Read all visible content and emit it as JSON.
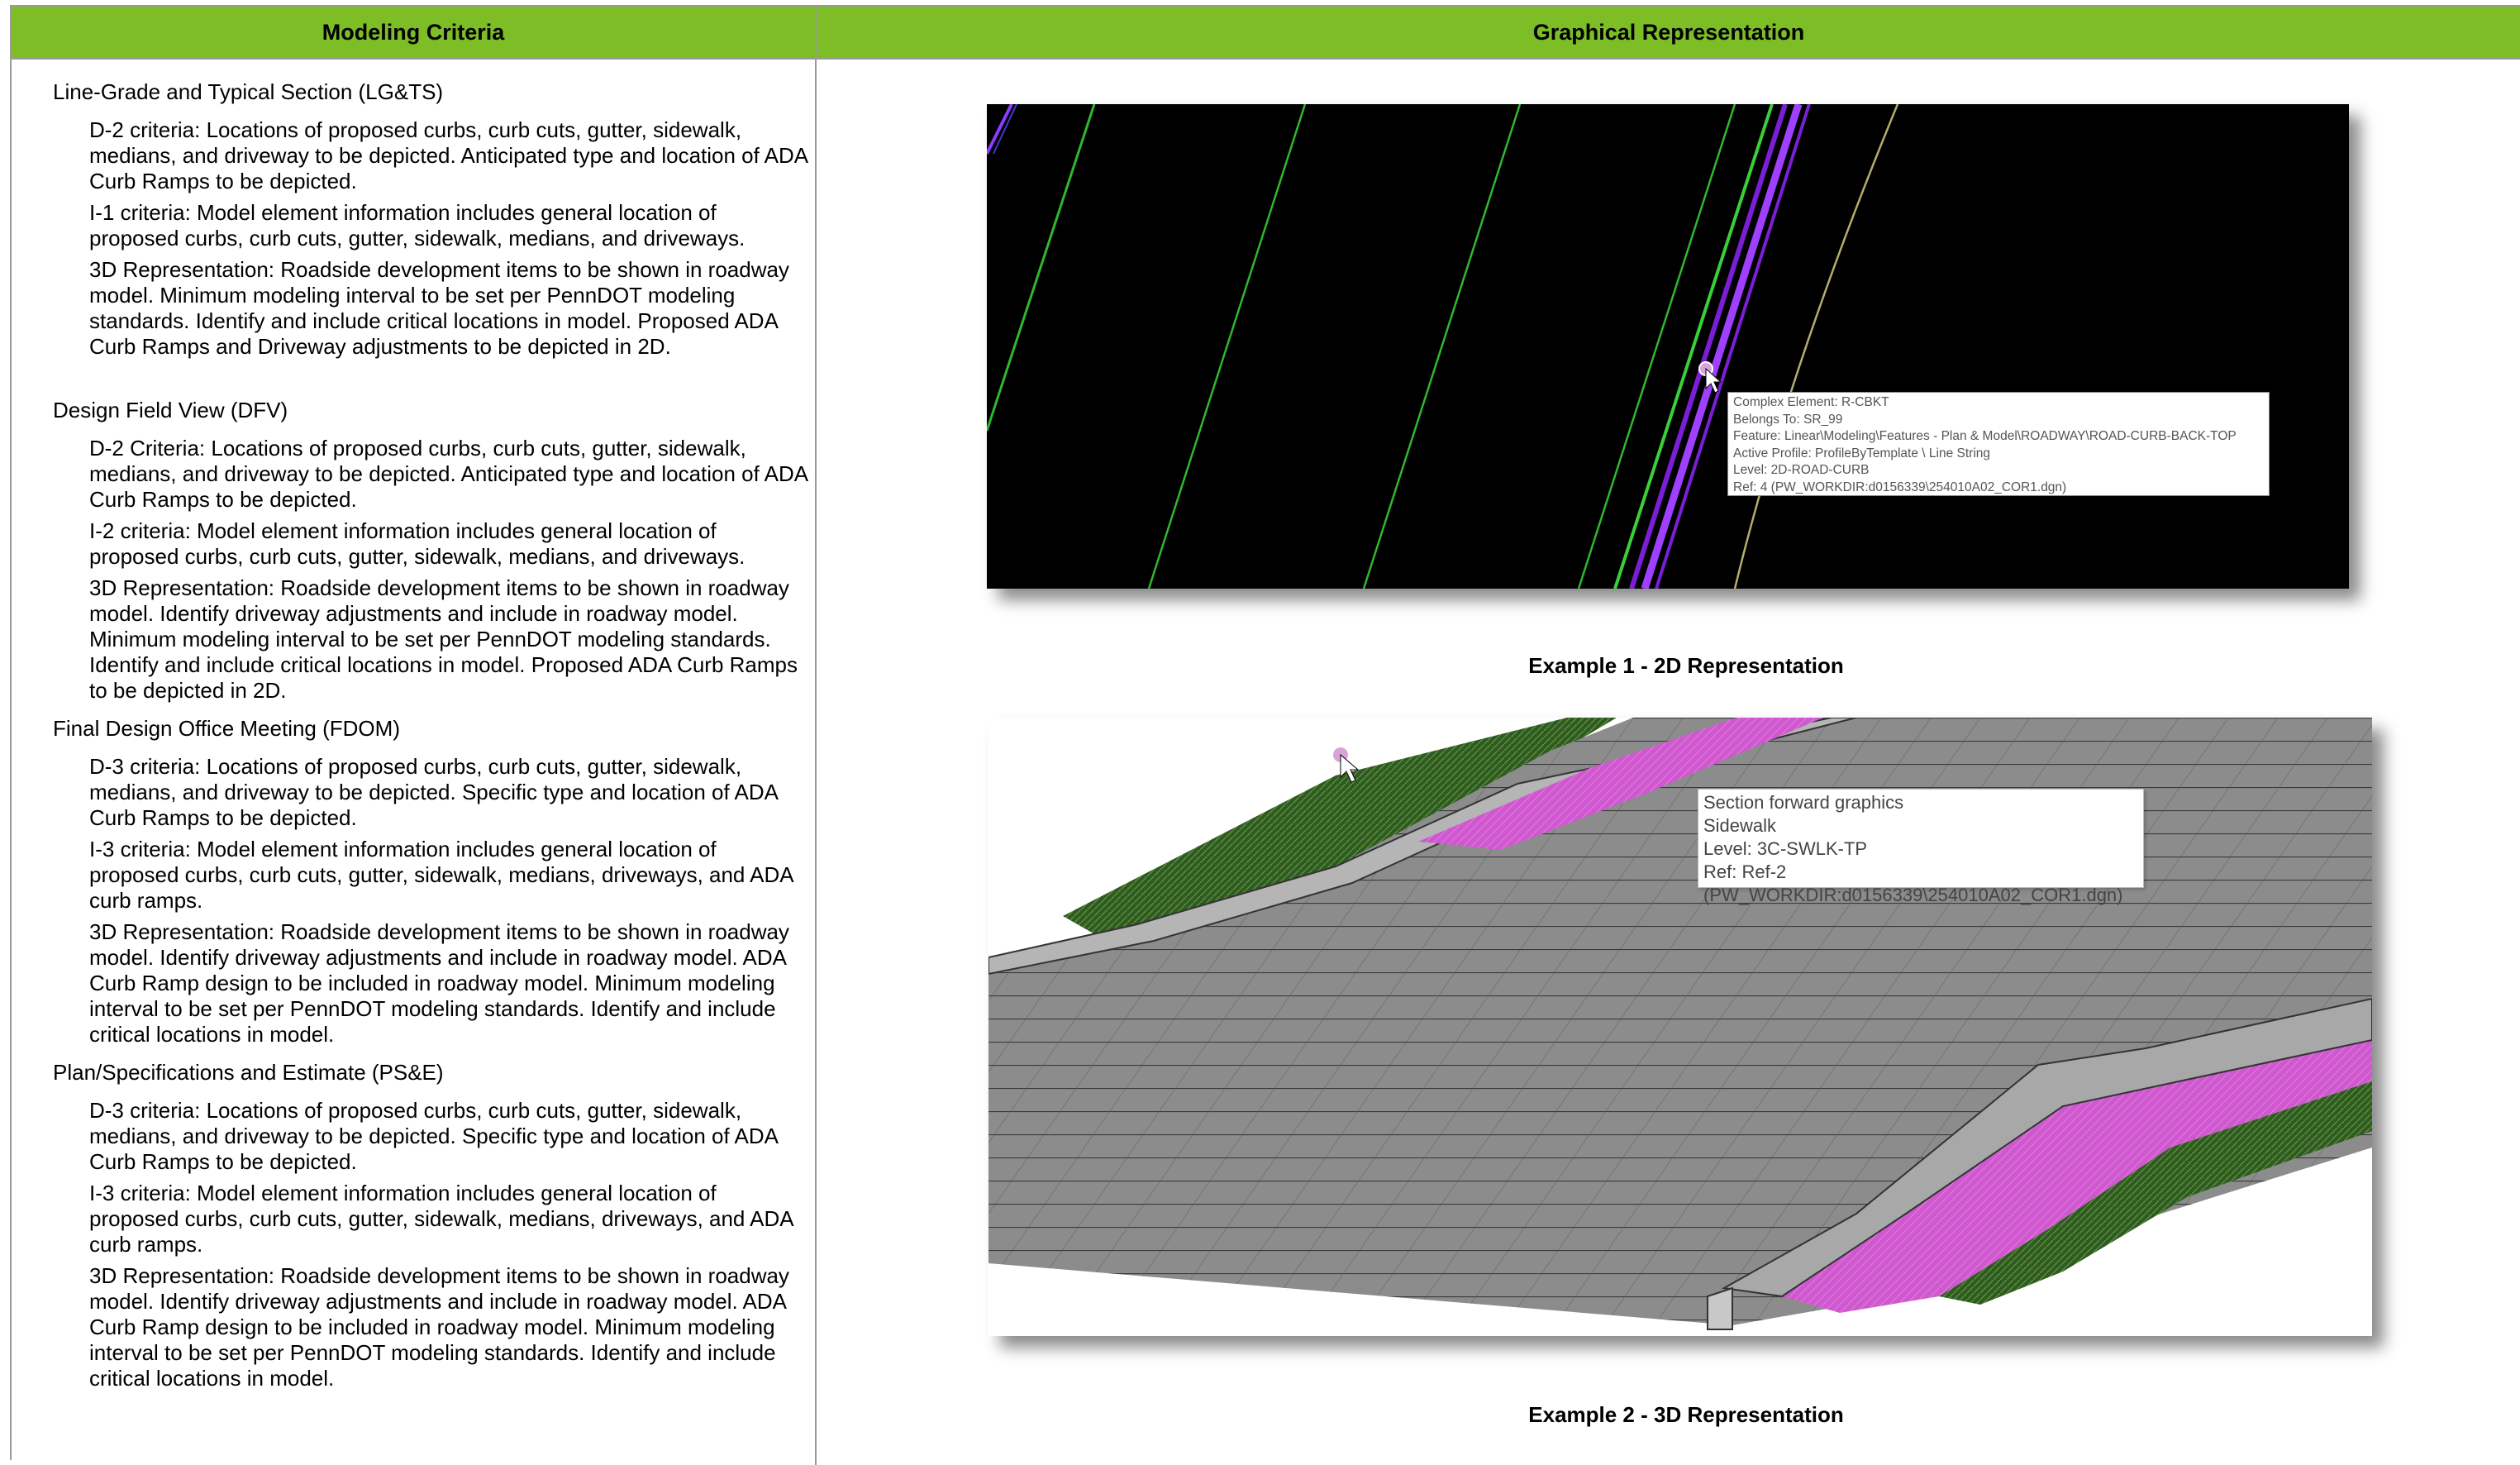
{
  "header": {
    "left": "Modeling Criteria",
    "right": "Graphical Representation"
  },
  "sections": [
    {
      "title": "Line-Grade and Typical Section (LG&TS)",
      "items": [
        "D-2 criteria: Locations of proposed curbs, curb cuts, gutter, sidewalk, medians, and driveway to be depicted. Anticipated type and location of ADA Curb Ramps to be depicted.",
        "I-1 criteria: Model element information includes general location of proposed curbs, curb cuts, gutter, sidewalk, medians, and driveways.",
        "3D Representation: Roadside development items to be shown in roadway model. Minimum modeling interval to be set per PennDOT modeling standards. Identify and include critical locations in model. Proposed ADA Curb Ramps and Driveway adjustments to be depicted in 2D."
      ]
    },
    {
      "title": "Design Field View (DFV)",
      "items": [
        "D-2 Criteria: Locations of proposed curbs, curb cuts, gutter, sidewalk, medians, and driveway to be depicted. Anticipated type and location of ADA Curb Ramps to be depicted.",
        "I-2 criteria: Model element information includes general location of proposed curbs, curb cuts, gutter, sidewalk, medians, and driveways.",
        "3D Representation: Roadside development items to be shown in roadway model. Identify driveway adjustments and include in roadway model. Minimum modeling interval to be set per PennDOT modeling standards. Identify and include critical locations in model.  Proposed ADA Curb Ramps to be depicted in 2D."
      ]
    },
    {
      "title": "Final Design Office Meeting (FDOM)",
      "items": [
        "D-3 criteria: Locations of proposed curbs, curb cuts, gutter, sidewalk, medians, and driveway to be depicted. Specific type and location of ADA Curb Ramps to be depicted.",
        "I-3 criteria: Model element information includes general location of proposed curbs, curb cuts, gutter, sidewalk, medians, driveways, and ADA curb ramps.",
        "3D Representation: Roadside development items to be shown in roadway model. Identify driveway adjustments and include in roadway model. ADA Curb Ramp design to be included in roadway model. Minimum modeling interval to be set per PennDOT modeling standards. Identify and include critical locations in model."
      ]
    },
    {
      "title": "Plan/Specifications and Estimate (PS&E)",
      "items": [
        "D-3 criteria: Locations of proposed curbs, curb cuts, gutter, sidewalk, medians, and driveway to be depicted. Specific type and location of ADA Curb Ramps to be depicted.",
        "I-3 criteria: Model element information includes general location of proposed curbs, curb cuts, gutter, sidewalk, medians, driveways, and ADA curb ramps.",
        "3D Representation: Roadside development items to be shown in roadway model. Identify driveway adjustments and include in roadway model. ADA Curb Ramp design to be included in roadway model. Minimum modeling interval to be set per PennDOT modeling standards. Identify and include critical locations in model."
      ]
    }
  ],
  "example1": {
    "caption": "Example 1 - 2D Representation",
    "tooltip": [
      "Complex Element: R-CBKT",
      "Belongs To: SR_99",
      "Feature: Linear\\Modeling\\Features - Plan & Model\\ROADWAY\\ROAD-CURB-BACK-TOP",
      "Active Profile: ProfileByTemplate \\ Line String",
      "Level: 2D-ROAD-CURB",
      "Ref: 4 (PW_WORKDIR:d0156339\\254010A02_COR1.dgn)"
    ]
  },
  "example2": {
    "caption": "Example 2 - 3D Representation",
    "tooltip": [
      "Section forward graphics",
      "Sidewalk",
      "Level: 3C-SWLK-TP",
      "Ref: Ref-2 (PW_WORKDIR:d0156339\\254010A02_COR1.dgn)"
    ]
  },
  "colors": {
    "header_bg": "#7dbd25",
    "model_green": "#3cc83c",
    "model_purple": "#9b30ff",
    "sidewalk_magenta": "#d24fd2"
  }
}
